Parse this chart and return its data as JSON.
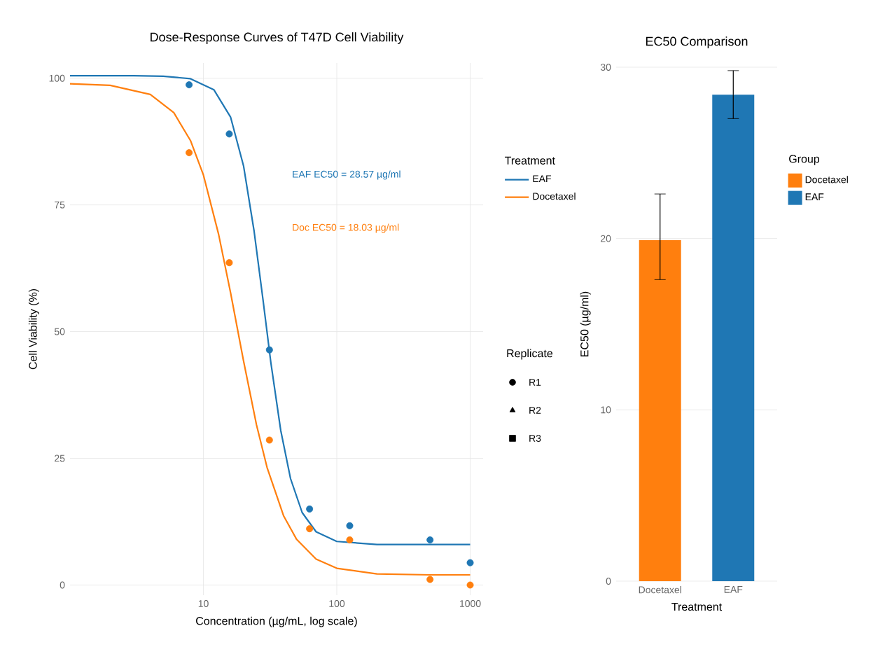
{
  "chart_data": [
    {
      "type": "line",
      "title": "Dose-Response Curves of T47D Cell Viability",
      "xlabel": "Concentration (µg/mL, log scale)",
      "ylabel": "Cell Viability (%)",
      "legend_title": "Treatment",
      "log": "x",
      "grid": true,
      "legend": "right",
      "xlim": [
        1,
        1250
      ],
      "ylim": [
        -2,
        103
      ],
      "xticks": [
        10,
        100,
        1000
      ],
      "yticks": [
        0,
        25,
        50,
        75,
        100
      ],
      "series": [
        {
          "name": "EAF",
          "type": "line",
          "color": "#1f77b4",
          "x": [
            1,
            3,
            5,
            8,
            12,
            16,
            20,
            24,
            28,
            32,
            38,
            45,
            55,
            70,
            100,
            200,
            500,
            1000
          ],
          "values": [
            100.5,
            100.5,
            100.4,
            99.9,
            97.7,
            92.3,
            82.7,
            69.8,
            56.2,
            44.0,
            30.5,
            21.0,
            14.3,
            10.5,
            8.6,
            8.0,
            8.0,
            8.0
          ]
        },
        {
          "name": "Docetaxel",
          "type": "line",
          "color": "#ff7f0e",
          "x": [
            1,
            2,
            4,
            6,
            8,
            10,
            13,
            16,
            20,
            25,
            30,
            40,
            50,
            70,
            100,
            200,
            500,
            1000
          ],
          "values": [
            98.9,
            98.6,
            96.8,
            93.2,
            87.7,
            80.9,
            69.2,
            57.6,
            44.2,
            31.6,
            23.2,
            13.6,
            9.0,
            5.1,
            3.3,
            2.2,
            2.0,
            2.0
          ]
        },
        {
          "type": "scatter",
          "marker": "circle",
          "color": "#1f77b4",
          "x": [
            7.8125,
            15.625,
            31.25,
            62.5,
            125,
            500,
            1000
          ],
          "values": [
            98.7,
            89,
            46.4,
            15,
            11.7,
            8.9,
            4.4
          ]
        },
        {
          "type": "scatter",
          "marker": "circle",
          "color": "#ff7f0e",
          "x": [
            7.8125,
            15.625,
            31.25,
            62.5,
            125,
            500,
            1000
          ],
          "values": [
            85.3,
            63.6,
            28.6,
            11.1,
            8.9,
            1.1,
            0
          ]
        }
      ],
      "annotations": [
        "EAF EC50 = 28.57 µg/ml",
        "Doc EC50 = 18.03 µg/ml",
        "Replicate",
        "R1",
        "R2",
        "R3"
      ]
    },
    {
      "type": "bar",
      "title": "EC50 Comparison",
      "xlabel": "Treatment",
      "ylabel": "EC50 (µg/ml)",
      "legend_title": "Group",
      "legend": "right",
      "grid": "y",
      "categories": [
        "Docetaxel",
        "EAF"
      ],
      "series": [
        {
          "name": "Docetaxel",
          "color": "#ff7f0e",
          "values": [
            19.9,
            null
          ],
          "errors": [
            [
              17.6,
              22.6
            ],
            null
          ]
        },
        {
          "name": "EAF",
          "color": "#1f77b4",
          "values": [
            null,
            28.4
          ],
          "errors": [
            null,
            [
              27.0,
              29.8
            ]
          ]
        }
      ],
      "ylim": [
        0,
        30
      ],
      "yticks": [
        0,
        10,
        20,
        30
      ]
    }
  ]
}
